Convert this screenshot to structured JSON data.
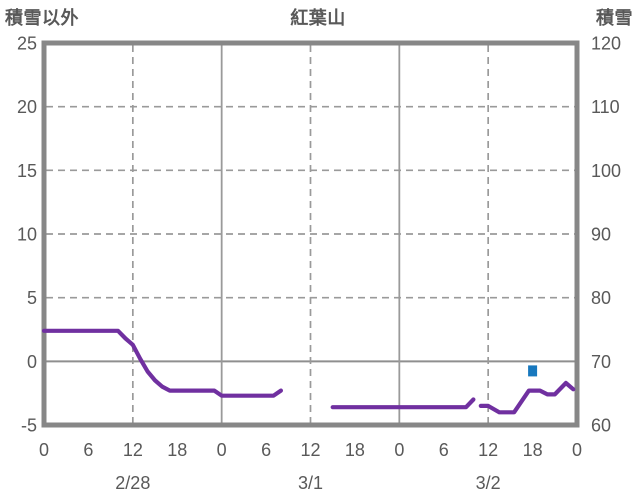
{
  "titles": {
    "left_axis": "積雪以外",
    "chart": "紅葉山",
    "right_axis": "積雪"
  },
  "colors": {
    "line_purple": "#7030a0",
    "marker_blue": "#1878be",
    "grid": "#9a9a9a",
    "zero_line": "#8f8f8f",
    "border": "#878787",
    "text": "#595959",
    "background": "#ffffff"
  },
  "chart_data": {
    "type": "line",
    "title": "紅葉山",
    "x_axis": {
      "span_hours": 72,
      "hour_ticks": [
        {
          "hour": 0,
          "label": "0"
        },
        {
          "hour": 6,
          "label": "6"
        },
        {
          "hour": 12,
          "label": "12"
        },
        {
          "hour": 18,
          "label": "18"
        },
        {
          "hour": 24,
          "label": "0"
        },
        {
          "hour": 30,
          "label": "6"
        },
        {
          "hour": 36,
          "label": "12"
        },
        {
          "hour": 42,
          "label": "18"
        },
        {
          "hour": 48,
          "label": "0"
        },
        {
          "hour": 54,
          "label": "6"
        },
        {
          "hour": 60,
          "label": "12"
        },
        {
          "hour": 66,
          "label": "18"
        },
        {
          "hour": 72,
          "label": "0"
        }
      ],
      "day_labels": [
        {
          "hour": 12,
          "label": "2/28"
        },
        {
          "hour": 36,
          "label": "3/1"
        },
        {
          "hour": 60,
          "label": "3/2"
        }
      ],
      "solid_gridline_hours": [
        24,
        48
      ],
      "dashed_gridline_hours": [
        12,
        36,
        60
      ]
    },
    "left_axis": {
      "title": "積雪以外",
      "min": -5,
      "max": 25,
      "ticks": [
        25,
        20,
        15,
        10,
        5,
        0,
        -5
      ],
      "dashed_gridlines": [
        20,
        15,
        10,
        5
      ],
      "solid_gridlines": [
        0
      ]
    },
    "right_axis": {
      "title": "積雪",
      "min": 60,
      "max": 120,
      "ticks": [
        120,
        110,
        100,
        90,
        80,
        70,
        60
      ]
    },
    "series": [
      {
        "id": "main-purple-line",
        "axis": "left",
        "style": "line",
        "color": "#7030a0",
        "segments": [
          [
            [
              0,
              2.4
            ],
            [
              10,
              2.4
            ],
            [
              11,
              1.8
            ],
            [
              12,
              1.3
            ],
            [
              13,
              0.2
            ],
            [
              14,
              -0.8
            ],
            [
              15,
              -1.5
            ],
            [
              16,
              -2.0
            ],
            [
              17,
              -2.3
            ],
            [
              23,
              -2.3
            ],
            [
              24,
              -2.7
            ],
            [
              31,
              -2.7
            ],
            [
              32,
              -2.3
            ]
          ],
          [
            [
              39,
              -3.6
            ],
            [
              57,
              -3.6
            ],
            [
              58,
              -3.0
            ]
          ],
          [
            [
              59,
              -3.5
            ],
            [
              60,
              -3.5
            ],
            [
              61.5,
              -4.0
            ],
            [
              63.5,
              -4.0
            ],
            [
              65.5,
              -2.3
            ],
            [
              67,
              -2.3
            ],
            [
              68,
              -2.6
            ],
            [
              69,
              -2.6
            ],
            [
              70.5,
              -1.7
            ],
            [
              71.5,
              -2.2
            ]
          ]
        ]
      },
      {
        "id": "snow-depth-marker",
        "axis": "right",
        "style": "square",
        "color": "#1878be",
        "points": [
          [
            66,
            68.5
          ]
        ]
      }
    ]
  }
}
